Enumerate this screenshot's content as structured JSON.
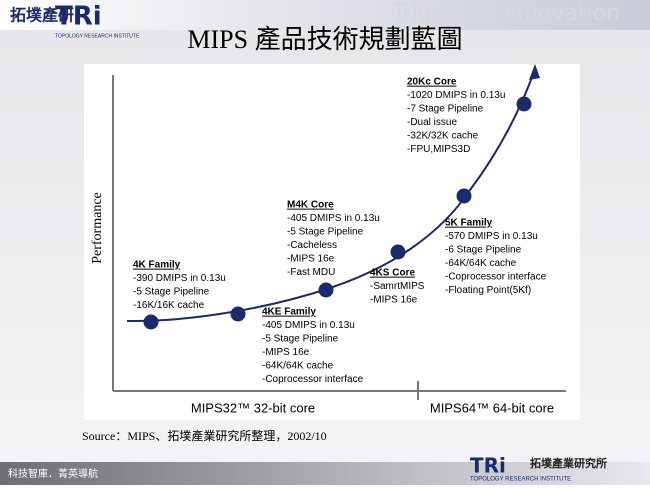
{
  "header": {
    "logo_cn": "拓墣產研",
    "logo_en": "TRi",
    "logo_sub": "TOPOLOGY RESEARCH INSTITUTE",
    "tagline": "Trigger of Innovation"
  },
  "title": "MIPS 產品技術規劃藍圖",
  "diagram": {
    "y_axis_label": "Performance",
    "x_segments": [
      "MIPS32™ 32-bit core",
      "MIPS64™ 64-bit core"
    ],
    "nodes": [
      {
        "title": "4K Family",
        "lines": [
          "-390 DMIPS in 0.13u",
          "-5 Stage Pipeline",
          "-16K/16K cache"
        ]
      },
      {
        "title": "4KE Family",
        "lines": [
          "-405 DMIPS in 0.13u",
          "-5 Stage Pipeline",
          "-MIPS 16e",
          "-64K/64K cache",
          "-Coprocessor interface"
        ]
      },
      {
        "title": "M4K Core",
        "lines": [
          "-405 DMIPS in 0.13u",
          "-5 Stage Pipeline",
          "-Cacheless",
          "-MIPS 16e",
          "-Fast MDU"
        ]
      },
      {
        "title": "4KS Core",
        "lines": [
          "-SamrtMIPS",
          "-MIPS 16e"
        ]
      },
      {
        "title": "5K Family",
        "lines": [
          "-570 DMIPS in 0.13u",
          "-6 Stage Pipeline",
          "-64K/64K cache",
          "-Coprocessor interface",
          "-Floating Point(5Kf)"
        ]
      },
      {
        "title": "20Kc Core",
        "lines": [
          "-1020 DMIPS in 0.13u",
          "-7 Stage Pipeline",
          "-Dual issue",
          "-32K/32K cache",
          "-FPU,MIPS3D"
        ]
      }
    ]
  },
  "source": "Source：MIPS、拓墣產業研究所整理，2002/10",
  "footer": {
    "slogan": "科技智庫．菁英導航",
    "logo_en": "TRi",
    "logo_cn": "拓墣產業研究所",
    "logo_sub": "TOPOLOGY RESEARCH INSTITUTE"
  }
}
